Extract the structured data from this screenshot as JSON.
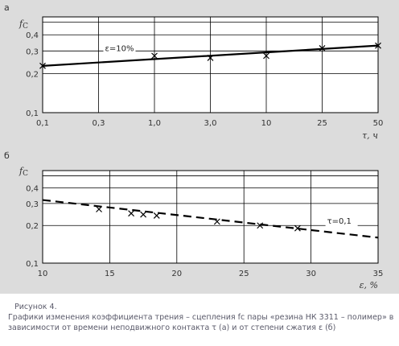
{
  "chart_data": [
    {
      "type": "line",
      "panel_label": "а",
      "ylabel": "f",
      "ylabel_sub": "C",
      "xlabel": "τ, ч",
      "x_scale": "log",
      "y_scale": "log",
      "x": [
        0.1,
        0.3,
        1.0,
        3.0,
        10,
        25,
        50
      ],
      "xticks": [
        "0,1",
        "0,3",
        "1,0",
        "3,0",
        "10",
        "25",
        "50"
      ],
      "yticks": [
        0.1,
        0.2,
        0.3,
        0.4
      ],
      "ytick_labels": [
        "0,1",
        "0,2",
        "0,3",
        "0,4"
      ],
      "ygrid": [
        0.1,
        0.2,
        0.3,
        0.4,
        0.5
      ],
      "ylim": [
        0.1,
        0.55
      ],
      "grid": true,
      "series": [
        {
          "name": "ε=10%",
          "style": "solid",
          "line": [
            [
              0.1,
              0.23
            ],
            [
              50,
              0.33
            ]
          ],
          "points": [
            [
              0.1,
              0.23
            ],
            [
              1.0,
              0.275
            ],
            [
              3.0,
              0.265
            ],
            [
              10,
              0.275
            ],
            [
              25,
              0.315
            ],
            [
              50,
              0.33
            ]
          ]
        }
      ]
    },
    {
      "type": "line",
      "panel_label": "б",
      "ylabel": "f",
      "ylabel_sub": "C",
      "xlabel": "ε, %",
      "x_scale": "linear",
      "y_scale": "log",
      "xlim": [
        10,
        35
      ],
      "xticks": [
        10,
        15,
        20,
        25,
        30,
        35
      ],
      "yticks": [
        0.1,
        0.2,
        0.3,
        0.4
      ],
      "ytick_labels": [
        "0,1",
        "0,2",
        "0,3",
        "0,4"
      ],
      "ygrid": [
        0.1,
        0.2,
        0.3,
        0.4,
        0.5
      ],
      "ylim": [
        0.1,
        0.55
      ],
      "grid": true,
      "series": [
        {
          "name": "τ=0,1",
          "style": "dashed",
          "line": [
            [
              10,
              0.32
            ],
            [
              35,
              0.16
            ]
          ],
          "points": [
            [
              14.2,
              0.27
            ],
            [
              16.6,
              0.25
            ],
            [
              17.5,
              0.245
            ],
            [
              18.5,
              0.24
            ],
            [
              23,
              0.215
            ],
            [
              26.2,
              0.2
            ],
            [
              29,
              0.19
            ]
          ]
        }
      ]
    }
  ],
  "caption": {
    "title": "Рисунок 4.",
    "text": "Графики изменения коэффициента трения – сцепления fс пары «резина НК 3311 – полимер» в зависимости от времени неподвижного контакта τ (а) и от степени сжатия ε (б)"
  }
}
